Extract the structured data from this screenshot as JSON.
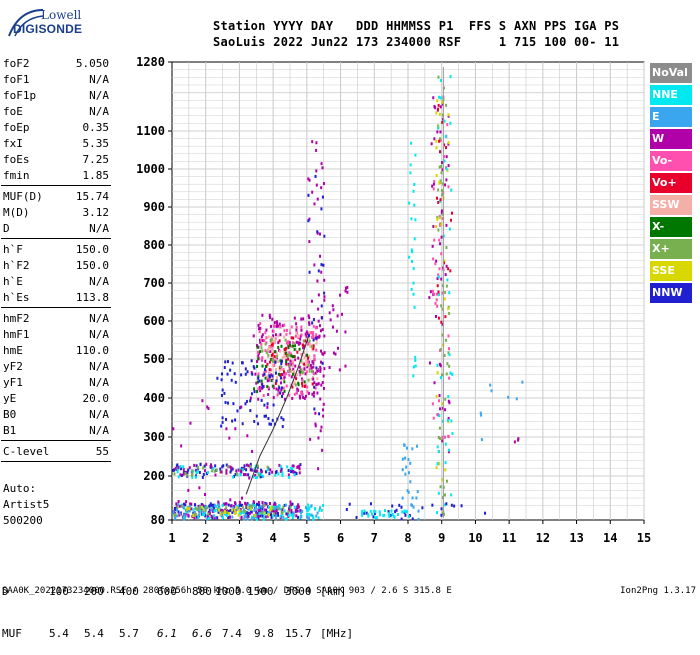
{
  "logo": {
    "line1": "Lowell",
    "line2": "DIGISONDE"
  },
  "header": {
    "row1": "Station YYYY DAY   DDD HHMMSS P1  FFS S AXN PPS IGA PS",
    "row2": "SaoLuis 2022 Jun22 173 234000 RSF     1 715 100 00- 11"
  },
  "params_group1": [
    {
      "label": "foF2",
      "value": "5.050"
    },
    {
      "label": "foF1",
      "value": "N/A"
    },
    {
      "label": "foF1p",
      "value": "N/A"
    },
    {
      "label": "foE",
      "value": "N/A"
    },
    {
      "label": "foEp",
      "value": "0.35"
    },
    {
      "label": "fxI",
      "value": "5.35"
    },
    {
      "label": "foEs",
      "value": "7.25"
    },
    {
      "label": "fmin",
      "value": "1.85"
    }
  ],
  "params_group2": [
    {
      "label": "MUF(D)",
      "value": "15.74"
    },
    {
      "label": "M(D)",
      "value": "3.12"
    },
    {
      "label": "D",
      "value": "N/A"
    }
  ],
  "params_group3": [
    {
      "label": "h`F",
      "value": "150.0"
    },
    {
      "label": "h`F2",
      "value": "150.0"
    },
    {
      "label": "h`E",
      "value": "N/A"
    },
    {
      "label": "h`Es",
      "value": "113.8"
    }
  ],
  "params_group4": [
    {
      "label": "hmF2",
      "value": "N/A"
    },
    {
      "label": "hmF1",
      "value": "N/A"
    },
    {
      "label": "hmE",
      "value": "110.0"
    },
    {
      "label": "yF2",
      "value": "N/A"
    },
    {
      "label": "yF1",
      "value": "N/A"
    },
    {
      "label": "yE",
      "value": "20.0"
    },
    {
      "label": "B0",
      "value": "N/A"
    },
    {
      "label": "B1",
      "value": "N/A"
    }
  ],
  "params_group5": [
    {
      "label": "C-level",
      "value": "55"
    }
  ],
  "autoscaling": {
    "line1": "Auto:",
    "line2": "Artist5",
    "line3": "500200"
  },
  "legend": [
    {
      "label": "NoVal",
      "color": "#8c8c8c"
    },
    {
      "label": "NNE",
      "color": "#00e8f0"
    },
    {
      "label": "E",
      "color": "#3aa6f0"
    },
    {
      "label": "W",
      "color": "#b000a8"
    },
    {
      "label": "Vo-",
      "color": "#ff50b0"
    },
    {
      "label": "Vo+",
      "color": "#e8002a"
    },
    {
      "label": "SSW",
      "color": "#f4b0a8"
    },
    {
      "label": "X-",
      "color": "#007800"
    },
    {
      "label": "X+",
      "color": "#78b050"
    },
    {
      "label": "SSE",
      "color": "#d8d800"
    },
    {
      "label": "NNW",
      "color": "#2020d0"
    }
  ],
  "d_table": {
    "d_label": "D",
    "d_values": [
      "100",
      "200",
      "400",
      "600",
      "800",
      "1000",
      "1500",
      "3000"
    ],
    "d_unit": "[km]",
    "muf_label": "MUF",
    "muf_values": [
      "5.4",
      "5.4",
      "5.7",
      "6.1",
      "6.6",
      "7.4",
      "9.8",
      "15.7"
    ],
    "muf_unit": "[MHz]"
  },
  "footer": {
    "left": "SAA0K_2022173234000.RSF / 280fx256h 50 kHz 5.0 km / DPS-4 SAA0K 903 / 2.6 S 315.8 E",
    "right": "Ion2Png 1.3.17"
  },
  "chart_data": {
    "type": "scatter",
    "x_ticks": [
      "1",
      "2",
      "3",
      "4",
      "5",
      "6",
      "7",
      "8",
      "9",
      "10",
      "11",
      "12",
      "13",
      "14",
      "15"
    ],
    "y_ticks": [
      "80",
      "200",
      "300",
      "400",
      "500",
      "600",
      "700",
      "800",
      "900",
      "1000",
      "1100",
      "1280"
    ],
    "xlim": [
      1,
      15
    ],
    "ylim": [
      80,
      1280
    ],
    "y_scale": "nonlinear",
    "grid": true,
    "legend_position": "right",
    "trace_line": [
      {
        "x": 3.2,
        "y": 150
      },
      {
        "x": 3.6,
        "y": 250
      },
      {
        "x": 4.0,
        "y": 320
      },
      {
        "x": 4.4,
        "y": 400
      },
      {
        "x": 4.75,
        "y": 480
      },
      {
        "x": 5.05,
        "y": 560
      }
    ],
    "vertical_trace_x": 9.05,
    "clusters": [
      {
        "color": "NNW",
        "x": [
          1.0,
          4.8
        ],
        "y": [
          90,
          130
        ],
        "n": 140
      },
      {
        "color": "W",
        "x": [
          1.0,
          4.8
        ],
        "y": [
          90,
          135
        ],
        "n": 110
      },
      {
        "color": "NNE",
        "x": [
          1.0,
          5.5
        ],
        "y": [
          85,
          125
        ],
        "n": 90
      },
      {
        "color": "E",
        "x": [
          1.0,
          5.5
        ],
        "y": [
          85,
          130
        ],
        "n": 70
      },
      {
        "color": "X+",
        "x": [
          1.0,
          4.5
        ],
        "y": [
          95,
          125
        ],
        "n": 40
      },
      {
        "color": "SSE",
        "x": [
          1.3,
          4.0
        ],
        "y": [
          95,
          120
        ],
        "n": 25
      },
      {
        "color": "NNW",
        "x": [
          1.0,
          4.9
        ],
        "y": [
          200,
          235
        ],
        "n": 70
      },
      {
        "color": "W",
        "x": [
          1.0,
          4.9
        ],
        "y": [
          205,
          235
        ],
        "n": 45
      },
      {
        "color": "NNE",
        "x": [
          1.0,
          4.9
        ],
        "y": [
          200,
          230
        ],
        "n": 40
      },
      {
        "color": "X+",
        "x": [
          1.0,
          4.0
        ],
        "y": [
          205,
          230
        ],
        "n": 20
      },
      {
        "color": "W",
        "x": [
          3.3,
          5.4
        ],
        "y": [
          400,
          620
        ],
        "n": 160
      },
      {
        "color": "Vo-",
        "x": [
          3.5,
          5.3
        ],
        "y": [
          410,
          600
        ],
        "n": 120
      },
      {
        "color": "SSW",
        "x": [
          3.8,
          5.3
        ],
        "y": [
          440,
          580
        ],
        "n": 80
      },
      {
        "color": "Vo+",
        "x": [
          3.8,
          5.2
        ],
        "y": [
          430,
          560
        ],
        "n": 40
      },
      {
        "color": "X-",
        "x": [
          3.4,
          5.0
        ],
        "y": [
          420,
          540
        ],
        "n": 40
      },
      {
        "color": "X+",
        "x": [
          3.6,
          5.2
        ],
        "y": [
          430,
          560
        ],
        "n": 30
      },
      {
        "color": "NNW",
        "x": [
          2.3,
          4.3
        ],
        "y": [
          330,
          500
        ],
        "n": 80
      },
      {
        "color": "W",
        "x": [
          5.0,
          5.5
        ],
        "y": [
          220,
          1100
        ],
        "n": 60
      },
      {
        "color": "NNW",
        "x": [
          5.0,
          5.5
        ],
        "y": [
          300,
          1000
        ],
        "n": 25
      },
      {
        "color": "W",
        "x": [
          5.6,
          6.2
        ],
        "y": [
          450,
          700
        ],
        "n": 20
      },
      {
        "color": "NNE",
        "x": [
          8.0,
          8.2
        ],
        "y": [
          450,
          1100
        ],
        "n": 25
      },
      {
        "color": "E",
        "x": [
          7.8,
          8.3
        ],
        "y": [
          85,
          300
        ],
        "n": 25
      },
      {
        "color": "W",
        "x": [
          8.6,
          9.2
        ],
        "y": [
          250,
          1200
        ],
        "n": 55
      },
      {
        "color": "Vo-",
        "x": [
          8.7,
          9.2
        ],
        "y": [
          300,
          1200
        ],
        "n": 40
      },
      {
        "color": "X+",
        "x": [
          8.8,
          9.2
        ],
        "y": [
          85,
          1250
        ],
        "n": 50
      },
      {
        "color": "SSE",
        "x": [
          8.8,
          9.2
        ],
        "y": [
          85,
          1250
        ],
        "n": 30
      },
      {
        "color": "NNE",
        "x": [
          8.8,
          9.3
        ],
        "y": [
          85,
          1250
        ],
        "n": 40
      },
      {
        "color": "Vo+",
        "x": [
          8.8,
          9.3
        ],
        "y": [
          500,
          1200
        ],
        "n": 20
      },
      {
        "color": "NNW",
        "x": [
          6.0,
          10.5
        ],
        "y": [
          85,
          130
        ],
        "n": 30
      },
      {
        "color": "NNE",
        "x": [
          6.5,
          8.0
        ],
        "y": [
          90,
          110
        ],
        "n": 30
      },
      {
        "color": "W",
        "x": [
          1.0,
          4.0
        ],
        "y": [
          130,
          420
        ],
        "n": 25
      },
      {
        "color": "E",
        "x": [
          10.0,
          11.5
        ],
        "y": [
          290,
          450
        ],
        "n": 8
      },
      {
        "color": "W",
        "x": [
          11.1,
          11.4
        ],
        "y": [
          290,
          300
        ],
        "n": 3
      }
    ]
  }
}
